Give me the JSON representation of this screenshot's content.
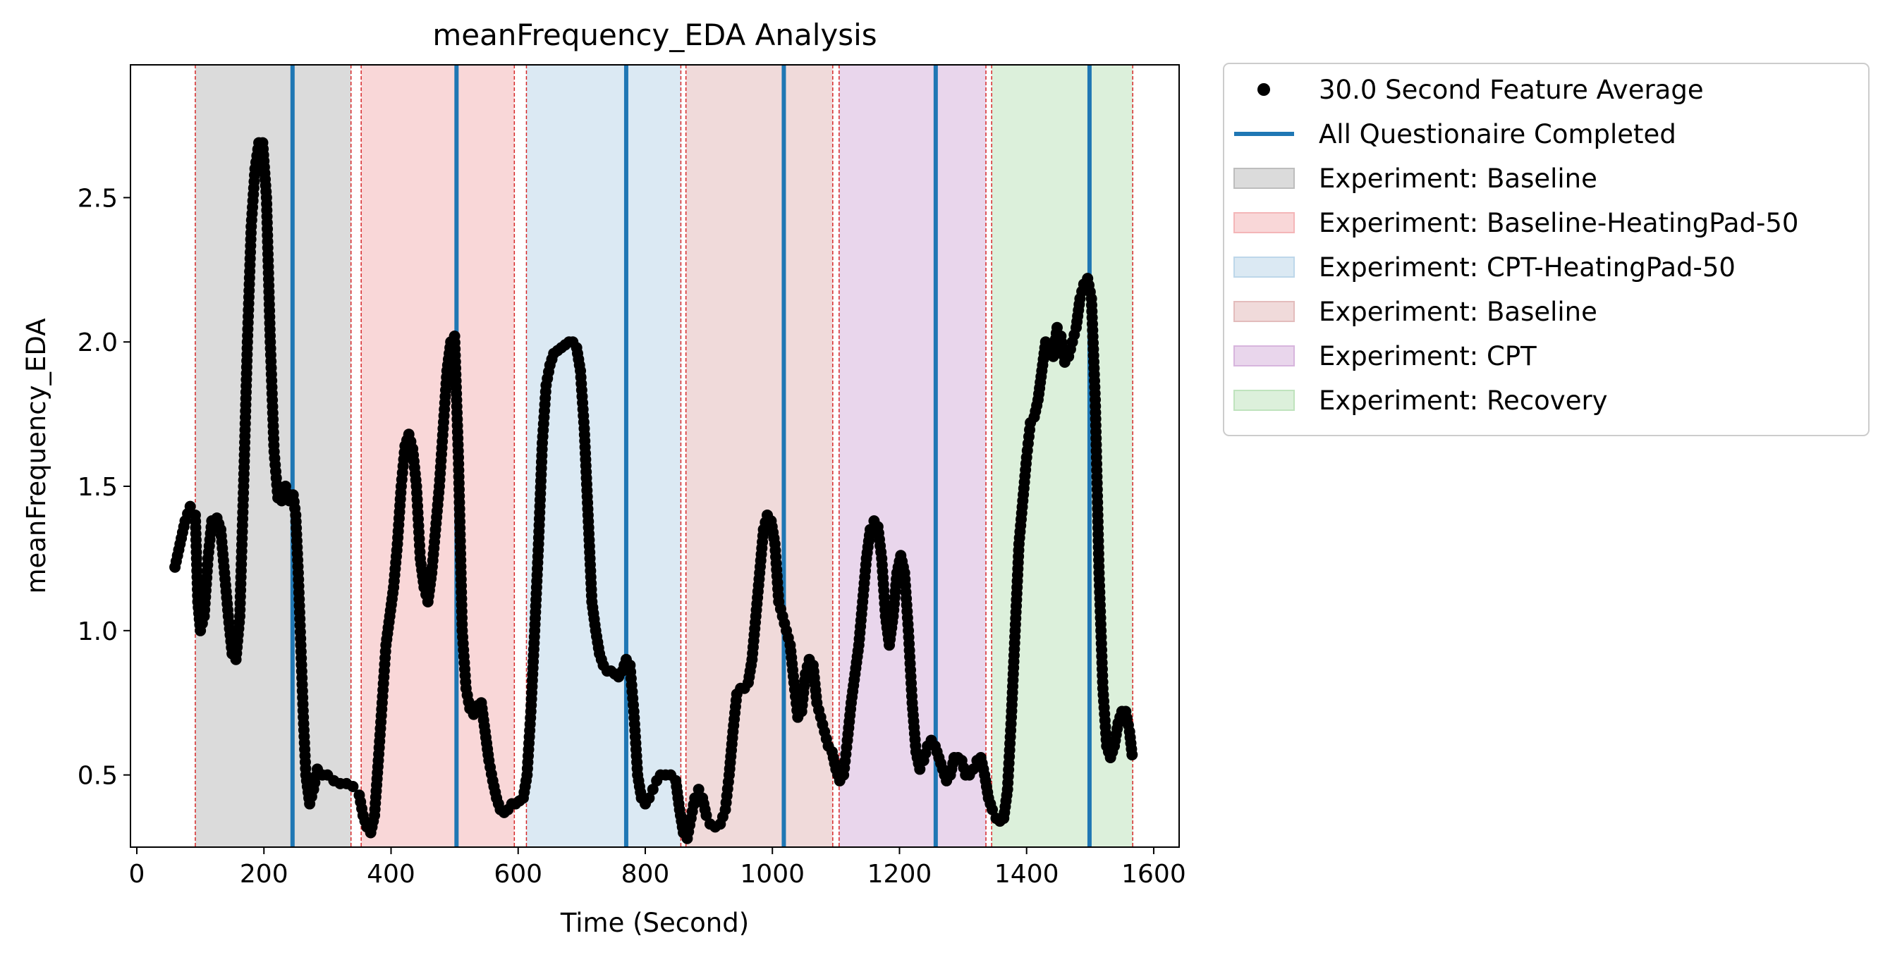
{
  "chart_data": {
    "type": "scatter",
    "title": "meanFrequency_EDA Analysis",
    "xlabel": "Time (Second)",
    "ylabel": "meanFrequency_EDA",
    "xlim": [
      -10,
      1640
    ],
    "ylim": [
      0.25,
      2.96
    ],
    "xticks": [
      0,
      200,
      400,
      600,
      800,
      1000,
      1200,
      1400,
      1600
    ],
    "yticks": [
      0.5,
      1.0,
      1.5,
      2.0,
      2.5
    ],
    "xtick_labels": [
      "0",
      "200",
      "400",
      "600",
      "800",
      "1000",
      "1200",
      "1400",
      "1600"
    ],
    "ytick_labels": [
      "0.5",
      "1.0",
      "1.5",
      "2.0",
      "2.5"
    ],
    "grid": false,
    "legend_position": "outside-top-right",
    "series_color": "#000000",
    "questionnaire_color": "#1f77b4",
    "boundary_color": "#d62728",
    "legend": [
      {
        "label": "30.0 Second Feature Average",
        "kind": "marker",
        "color": "#000000"
      },
      {
        "label": "All Questionaire Completed",
        "kind": "line",
        "color": "#1f77b4"
      },
      {
        "label": "Experiment: Baseline",
        "kind": "patch",
        "color": "#bdbdbd"
      },
      {
        "label": "Experiment: Baseline-HeatingPad-50",
        "kind": "patch",
        "color": "#f4b6b8"
      },
      {
        "label": "Experiment: CPT-HeatingPad-50",
        "kind": "patch",
        "color": "#bdd7ea"
      },
      {
        "label": "Experiment: Baseline",
        "kind": "patch",
        "color": "#e3bcbc"
      },
      {
        "label": "Experiment: CPT",
        "kind": "patch",
        "color": "#d7b5dd"
      },
      {
        "label": "Experiment: Recovery",
        "kind": "patch",
        "color": "#bfe3bd"
      }
    ],
    "spans": [
      {
        "label": "Experiment: Baseline",
        "start": 92,
        "end": 337,
        "color": "#bdbdbd"
      },
      {
        "label": "Experiment: Baseline-HeatingPad-50",
        "start": 353,
        "end": 594,
        "color": "#f4b6b8"
      },
      {
        "label": "Experiment: CPT-HeatingPad-50",
        "start": 613,
        "end": 856,
        "color": "#bdd7ea"
      },
      {
        "label": "Experiment: Baseline",
        "start": 864,
        "end": 1095,
        "color": "#e3bcbc"
      },
      {
        "label": "Experiment: CPT",
        "start": 1105,
        "end": 1336,
        "color": "#d7b5dd"
      },
      {
        "label": "Experiment: Recovery",
        "start": 1345,
        "end": 1567,
        "color": "#bfe3bd"
      }
    ],
    "questionnaire_completed": [
      245,
      503,
      770,
      1018,
      1257,
      1499
    ],
    "series": [
      {
        "name": "30.0 Second Feature Average",
        "points": [
          [
            60,
            1.22
          ],
          [
            68,
            1.3
          ],
          [
            76,
            1.38
          ],
          [
            84,
            1.43
          ],
          [
            92,
            1.4
          ],
          [
            96,
            1.1
          ],
          [
            100,
            1.0
          ],
          [
            106,
            1.05
          ],
          [
            112,
            1.25
          ],
          [
            118,
            1.38
          ],
          [
            126,
            1.39
          ],
          [
            132,
            1.35
          ],
          [
            138,
            1.2
          ],
          [
            144,
            1.05
          ],
          [
            150,
            0.92
          ],
          [
            156,
            0.9
          ],
          [
            162,
            1.05
          ],
          [
            168,
            1.5
          ],
          [
            174,
            2.0
          ],
          [
            180,
            2.4
          ],
          [
            186,
            2.6
          ],
          [
            192,
            2.69
          ],
          [
            198,
            2.69
          ],
          [
            204,
            2.5
          ],
          [
            210,
            2.0
          ],
          [
            216,
            1.62
          ],
          [
            222,
            1.46
          ],
          [
            228,
            1.45
          ],
          [
            234,
            1.5
          ],
          [
            240,
            1.45
          ],
          [
            246,
            1.47
          ],
          [
            250,
            1.4
          ],
          [
            254,
            1.2
          ],
          [
            258,
            0.95
          ],
          [
            262,
            0.7
          ],
          [
            266,
            0.5
          ],
          [
            272,
            0.4
          ],
          [
            278,
            0.45
          ],
          [
            284,
            0.52
          ],
          [
            292,
            0.5
          ],
          [
            300,
            0.5
          ],
          [
            310,
            0.48
          ],
          [
            320,
            0.47
          ],
          [
            330,
            0.47
          ],
          [
            340,
            0.46
          ],
          [
            350,
            0.43
          ],
          [
            356,
            0.36
          ],
          [
            362,
            0.32
          ],
          [
            368,
            0.3
          ],
          [
            374,
            0.36
          ],
          [
            380,
            0.55
          ],
          [
            386,
            0.75
          ],
          [
            392,
            0.95
          ],
          [
            398,
            1.05
          ],
          [
            404,
            1.15
          ],
          [
            410,
            1.3
          ],
          [
            416,
            1.5
          ],
          [
            422,
            1.64
          ],
          [
            428,
            1.68
          ],
          [
            434,
            1.63
          ],
          [
            440,
            1.5
          ],
          [
            446,
            1.25
          ],
          [
            452,
            1.15
          ],
          [
            458,
            1.1
          ],
          [
            464,
            1.2
          ],
          [
            470,
            1.35
          ],
          [
            476,
            1.5
          ],
          [
            482,
            1.7
          ],
          [
            488,
            1.9
          ],
          [
            494,
            2.0
          ],
          [
            500,
            2.02
          ],
          [
            506,
            1.6
          ],
          [
            512,
            1.0
          ],
          [
            518,
            0.8
          ],
          [
            524,
            0.73
          ],
          [
            530,
            0.71
          ],
          [
            536,
            0.74
          ],
          [
            542,
            0.75
          ],
          [
            548,
            0.65
          ],
          [
            554,
            0.55
          ],
          [
            560,
            0.48
          ],
          [
            566,
            0.42
          ],
          [
            572,
            0.38
          ],
          [
            578,
            0.37
          ],
          [
            584,
            0.38
          ],
          [
            590,
            0.4
          ],
          [
            596,
            0.4
          ],
          [
            602,
            0.41
          ],
          [
            608,
            0.42
          ],
          [
            614,
            0.5
          ],
          [
            620,
            0.72
          ],
          [
            626,
            1.0
          ],
          [
            632,
            1.3
          ],
          [
            638,
            1.65
          ],
          [
            644,
            1.85
          ],
          [
            650,
            1.92
          ],
          [
            656,
            1.96
          ],
          [
            662,
            1.97
          ],
          [
            668,
            1.98
          ],
          [
            674,
            1.99
          ],
          [
            680,
            2.0
          ],
          [
            686,
            2.0
          ],
          [
            692,
            1.98
          ],
          [
            698,
            1.9
          ],
          [
            704,
            1.7
          ],
          [
            710,
            1.4
          ],
          [
            716,
            1.1
          ],
          [
            722,
            1.0
          ],
          [
            728,
            0.92
          ],
          [
            734,
            0.88
          ],
          [
            740,
            0.86
          ],
          [
            746,
            0.86
          ],
          [
            752,
            0.85
          ],
          [
            758,
            0.84
          ],
          [
            764,
            0.86
          ],
          [
            770,
            0.9
          ],
          [
            776,
            0.88
          ],
          [
            782,
            0.72
          ],
          [
            788,
            0.5
          ],
          [
            794,
            0.42
          ],
          [
            800,
            0.4
          ],
          [
            806,
            0.42
          ],
          [
            812,
            0.45
          ],
          [
            818,
            0.48
          ],
          [
            824,
            0.5
          ],
          [
            832,
            0.5
          ],
          [
            840,
            0.5
          ],
          [
            848,
            0.48
          ],
          [
            854,
            0.38
          ],
          [
            860,
            0.3
          ],
          [
            866,
            0.28
          ],
          [
            872,
            0.35
          ],
          [
            878,
            0.42
          ],
          [
            884,
            0.45
          ],
          [
            890,
            0.42
          ],
          [
            896,
            0.36
          ],
          [
            902,
            0.33
          ],
          [
            910,
            0.32
          ],
          [
            918,
            0.33
          ],
          [
            926,
            0.38
          ],
          [
            932,
            0.5
          ],
          [
            938,
            0.65
          ],
          [
            944,
            0.78
          ],
          [
            950,
            0.8
          ],
          [
            956,
            0.8
          ],
          [
            962,
            0.82
          ],
          [
            968,
            0.9
          ],
          [
            974,
            1.05
          ],
          [
            980,
            1.2
          ],
          [
            986,
            1.35
          ],
          [
            992,
            1.4
          ],
          [
            998,
            1.38
          ],
          [
            1004,
            1.3
          ],
          [
            1010,
            1.1
          ],
          [
            1016,
            1.05
          ],
          [
            1022,
            1.0
          ],
          [
            1028,
            0.95
          ],
          [
            1034,
            0.82
          ],
          [
            1040,
            0.7
          ],
          [
            1046,
            0.72
          ],
          [
            1052,
            0.85
          ],
          [
            1058,
            0.9
          ],
          [
            1064,
            0.88
          ],
          [
            1070,
            0.75
          ],
          [
            1076,
            0.7
          ],
          [
            1082,
            0.65
          ],
          [
            1088,
            0.6
          ],
          [
            1094,
            0.58
          ],
          [
            1100,
            0.52
          ],
          [
            1106,
            0.48
          ],
          [
            1112,
            0.5
          ],
          [
            1118,
            0.62
          ],
          [
            1124,
            0.75
          ],
          [
            1130,
            0.85
          ],
          [
            1136,
            0.95
          ],
          [
            1142,
            1.1
          ],
          [
            1148,
            1.25
          ],
          [
            1154,
            1.35
          ],
          [
            1160,
            1.38
          ],
          [
            1166,
            1.36
          ],
          [
            1172,
            1.25
          ],
          [
            1178,
            1.05
          ],
          [
            1184,
            0.95
          ],
          [
            1190,
            1.05
          ],
          [
            1196,
            1.2
          ],
          [
            1202,
            1.26
          ],
          [
            1208,
            1.2
          ],
          [
            1214,
            1.0
          ],
          [
            1220,
            0.75
          ],
          [
            1226,
            0.58
          ],
          [
            1232,
            0.52
          ],
          [
            1238,
            0.55
          ],
          [
            1244,
            0.6
          ],
          [
            1250,
            0.62
          ],
          [
            1256,
            0.6
          ],
          [
            1262,
            0.56
          ],
          [
            1268,
            0.52
          ],
          [
            1274,
            0.48
          ],
          [
            1280,
            0.5
          ],
          [
            1286,
            0.56
          ],
          [
            1292,
            0.56
          ],
          [
            1298,
            0.55
          ],
          [
            1304,
            0.5
          ],
          [
            1310,
            0.5
          ],
          [
            1316,
            0.52
          ],
          [
            1322,
            0.55
          ],
          [
            1328,
            0.56
          ],
          [
            1334,
            0.5
          ],
          [
            1340,
            0.42
          ],
          [
            1346,
            0.38
          ],
          [
            1352,
            0.35
          ],
          [
            1358,
            0.34
          ],
          [
            1364,
            0.35
          ],
          [
            1370,
            0.45
          ],
          [
            1376,
            0.7
          ],
          [
            1382,
            1.0
          ],
          [
            1388,
            1.3
          ],
          [
            1394,
            1.45
          ],
          [
            1400,
            1.6
          ],
          [
            1406,
            1.72
          ],
          [
            1412,
            1.74
          ],
          [
            1418,
            1.8
          ],
          [
            1424,
            1.9
          ],
          [
            1430,
            2.0
          ],
          [
            1436,
            1.98
          ],
          [
            1442,
            1.95
          ],
          [
            1448,
            2.05
          ],
          [
            1454,
            2.02
          ],
          [
            1460,
            1.93
          ],
          [
            1466,
            1.95
          ],
          [
            1472,
            2.0
          ],
          [
            1478,
            2.05
          ],
          [
            1484,
            2.15
          ],
          [
            1490,
            2.2
          ],
          [
            1496,
            2.22
          ],
          [
            1502,
            2.15
          ],
          [
            1508,
            1.8
          ],
          [
            1514,
            1.2
          ],
          [
            1520,
            0.8
          ],
          [
            1526,
            0.6
          ],
          [
            1532,
            0.56
          ],
          [
            1538,
            0.6
          ],
          [
            1544,
            0.68
          ],
          [
            1550,
            0.72
          ],
          [
            1556,
            0.72
          ],
          [
            1562,
            0.65
          ],
          [
            1566,
            0.57
          ]
        ]
      }
    ]
  }
}
